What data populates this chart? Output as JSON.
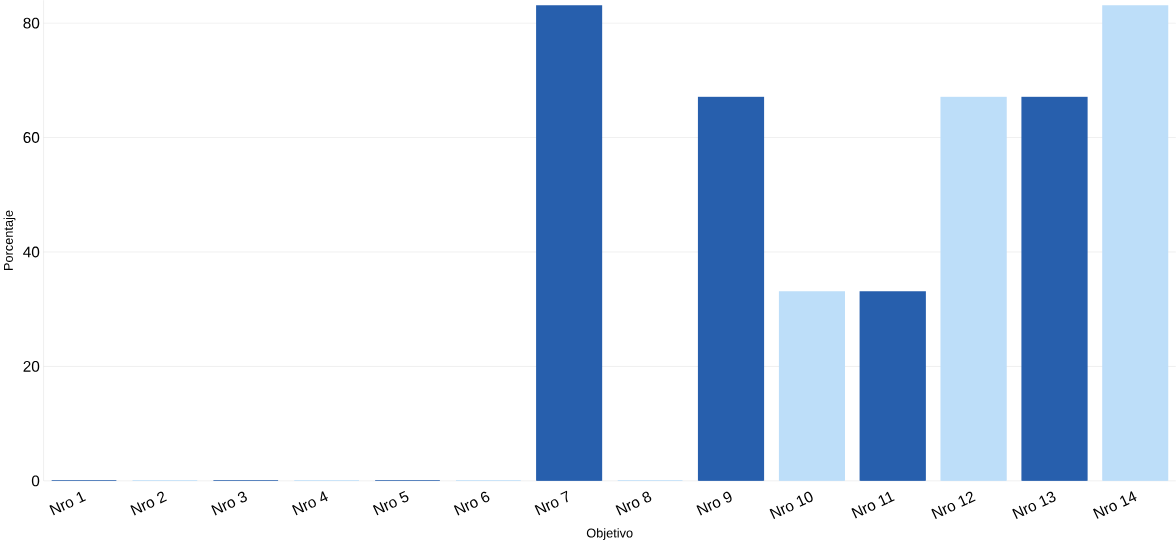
{
  "chart_data": {
    "type": "bar",
    "xlabel": "Objetivo",
    "ylabel": "Porcentaje",
    "categories": [
      "Nro 1",
      "Nro 2",
      "Nro 3",
      "Nro 4",
      "Nro 5",
      "Nro 6",
      "Nro 7",
      "Nro 8",
      "Nro 9",
      "Nro 10",
      "Nro 11",
      "Nro 12",
      "Nro 13",
      "Nro 14"
    ],
    "values": [
      0,
      0,
      0,
      0,
      0,
      0,
      83,
      0,
      67,
      33,
      33,
      67,
      67,
      83
    ],
    "colors": [
      "#275fad",
      "#bddef9",
      "#275fad",
      "#bddef9",
      "#275fad",
      "#bddef9",
      "#275fad",
      "#bddef9",
      "#275fad",
      "#bddef9",
      "#275fad",
      "#bddef9",
      "#275fad",
      "#bddef9"
    ],
    "ylim": [
      0,
      84
    ],
    "yticks": [
      0,
      20,
      40,
      60,
      80
    ],
    "grid": "y"
  }
}
